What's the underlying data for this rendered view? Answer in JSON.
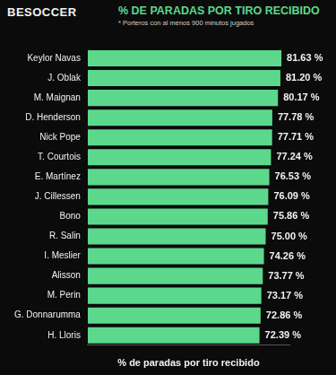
{
  "chart_data": {
    "type": "bar",
    "orientation": "horizontal",
    "brand": "BESOCCER",
    "title": "% DE PARADAS POR TIRO RECIBIDO",
    "subtitle": "* Porteros con al menos 900 minutos jugados",
    "x_label": "% de paradas por tiro recibido",
    "categories": [
      "Keylor Navas",
      "J. Oblak",
      "M. Maignan",
      "D. Henderson",
      "Nick Pope",
      "T. Courtois",
      "E. Martínez",
      "J. Cillessen",
      "Bono",
      "R. Salin",
      "I. Meslier",
      "Alisson",
      "M. Perin",
      "G. Donnarumma",
      "H. Lloris"
    ],
    "values": [
      81.63,
      81.2,
      80.17,
      77.78,
      77.71,
      77.24,
      76.53,
      76.09,
      75.86,
      75.0,
      74.26,
      73.77,
      73.17,
      72.86,
      72.39
    ],
    "value_labels": [
      "81.63 %",
      "81.20 %",
      "80.17 %",
      "77.78 %",
      "77.71 %",
      "77.24 %",
      "76.53 %",
      "76.09 %",
      "75.86 %",
      "75.00 %",
      "74.26 %",
      "73.77 %",
      "73.17 %",
      "72.86 %",
      "72.39 %"
    ],
    "color": "#5cd88c",
    "xlim": [
      0,
      85
    ],
    "grid": false,
    "data_labels": true,
    "tick_labels": "y"
  }
}
